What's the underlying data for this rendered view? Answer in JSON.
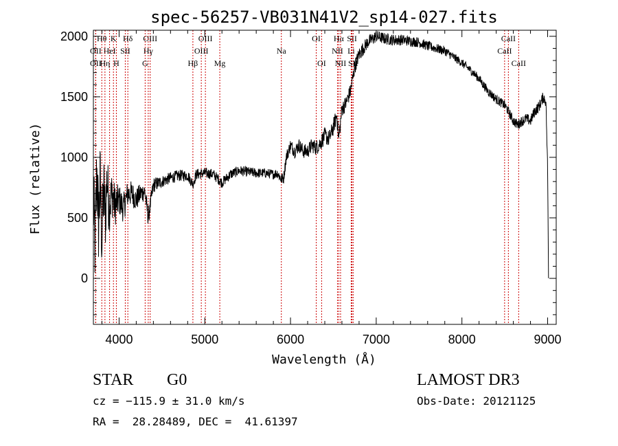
{
  "chart_data": {
    "type": "line",
    "title": "spec-56257-VB031N41V2_sp14-027.fits",
    "xlabel": "Wavelength (Å)",
    "ylabel": "Flux (relative)",
    "xlim": [
      3700,
      9100
    ],
    "ylim": [
      -380,
      2050
    ],
    "xticks": [
      {
        "v": 4000,
        "label": "4000"
      },
      {
        "v": 5000,
        "label": "5000"
      },
      {
        "v": 6000,
        "label": "6000"
      },
      {
        "v": 7000,
        "label": "7000"
      },
      {
        "v": 8000,
        "label": "8000"
      },
      {
        "v": 9000,
        "label": "9000"
      }
    ],
    "yticks": [
      {
        "v": 0,
        "label": "0"
      },
      {
        "v": 500,
        "label": "500"
      },
      {
        "v": 1000,
        "label": "1000"
      },
      {
        "v": 1500,
        "label": "1500"
      },
      {
        "v": 2000,
        "label": "2000"
      }
    ],
    "spectrum_anchors": [
      [
        3700,
        650
      ],
      [
        3720,
        250
      ],
      [
        3740,
        900
      ],
      [
        3760,
        450
      ],
      [
        3780,
        800
      ],
      [
        3800,
        300
      ],
      [
        3820,
        750
      ],
      [
        3840,
        500
      ],
      [
        3860,
        850
      ],
      [
        3880,
        600
      ],
      [
        3900,
        650
      ],
      [
        3920,
        700
      ],
      [
        3950,
        600
      ],
      [
        4000,
        650
      ],
      [
        4050,
        580
      ],
      [
        4100,
        700
      ],
      [
        4150,
        700
      ],
      [
        4200,
        650
      ],
      [
        4250,
        700
      ],
      [
        4300,
        720
      ],
      [
        4340,
        500
      ],
      [
        4400,
        770
      ],
      [
        4500,
        800
      ],
      [
        4600,
        830
      ],
      [
        4700,
        850
      ],
      [
        4800,
        850
      ],
      [
        4861,
        780
      ],
      [
        4900,
        860
      ],
      [
        5000,
        870
      ],
      [
        5100,
        860
      ],
      [
        5200,
        790
      ],
      [
        5300,
        860
      ],
      [
        5400,
        890
      ],
      [
        5500,
        880
      ],
      [
        5600,
        870
      ],
      [
        5700,
        870
      ],
      [
        5800,
        860
      ],
      [
        5850,
        870
      ],
      [
        5890,
        820
      ],
      [
        5920,
        830
      ],
      [
        5950,
        1000
      ],
      [
        6000,
        1100
      ],
      [
        6050,
        1050
      ],
      [
        6100,
        1100
      ],
      [
        6150,
        1050
      ],
      [
        6200,
        1050
      ],
      [
        6250,
        1100
      ],
      [
        6300,
        1080
      ],
      [
        6350,
        1120
      ],
      [
        6400,
        1180
      ],
      [
        6450,
        1150
      ],
      [
        6500,
        1250
      ],
      [
        6540,
        1350
      ],
      [
        6563,
        1150
      ],
      [
        6600,
        1400
      ],
      [
        6650,
        1450
      ],
      [
        6700,
        1550
      ],
      [
        6750,
        1750
      ],
      [
        6800,
        1850
      ],
      [
        6850,
        1900
      ],
      [
        6900,
        1950
      ],
      [
        7000,
        2000
      ],
      [
        7100,
        1980
      ],
      [
        7200,
        1970
      ],
      [
        7300,
        1970
      ],
      [
        7400,
        1960
      ],
      [
        7500,
        1950
      ],
      [
        7600,
        1920
      ],
      [
        7700,
        1900
      ],
      [
        7800,
        1880
      ],
      [
        7900,
        1830
      ],
      [
        8000,
        1780
      ],
      [
        8100,
        1720
      ],
      [
        8200,
        1650
      ],
      [
        8300,
        1550
      ],
      [
        8400,
        1480
      ],
      [
        8500,
        1430
      ],
      [
        8550,
        1370
      ],
      [
        8600,
        1300
      ],
      [
        8650,
        1270
      ],
      [
        8700,
        1300
      ],
      [
        8750,
        1320
      ],
      [
        8800,
        1300
      ],
      [
        8850,
        1380
      ],
      [
        8900,
        1420
      ],
      [
        8950,
        1500
      ],
      [
        8980,
        1460
      ],
      [
        9000,
        900
      ],
      [
        9005,
        500
      ],
      [
        9010,
        20
      ]
    ],
    "noise_amplitude": [
      [
        3700,
        380
      ],
      [
        3800,
        330
      ],
      [
        3900,
        220
      ],
      [
        4000,
        130
      ],
      [
        4300,
        80
      ],
      [
        4500,
        50
      ],
      [
        5000,
        45
      ],
      [
        5800,
        40
      ],
      [
        6000,
        55
      ],
      [
        6500,
        70
      ],
      [
        6800,
        60
      ],
      [
        7000,
        50
      ],
      [
        8000,
        35
      ],
      [
        8500,
        40
      ],
      [
        9000,
        50
      ]
    ],
    "series": [
      {
        "name": "flux",
        "color": "#000000"
      }
    ],
    "line_color": "#cc0000",
    "spectral_lines": [
      {
        "label": "Hθ",
        "x": 3798,
        "row": 0
      },
      {
        "label": "OII",
        "x": 3727,
        "row": 1
      },
      {
        "label": "OII",
        "x": 3727,
        "row": 2
      },
      {
        "label": "K",
        "x": 3934,
        "row": 0
      },
      {
        "label": "HeI",
        "x": 3889,
        "row": 1
      },
      {
        "label": "Hη",
        "x": 3835,
        "row": 2
      },
      {
        "label": "Hδ",
        "x": 4102,
        "row": 0
      },
      {
        "label": "SII",
        "x": 4072,
        "row": 1
      },
      {
        "label": "H",
        "x": 3968,
        "row": 2
      },
      {
        "label": "OIII",
        "x": 4363,
        "row": 0
      },
      {
        "label": "Hγ",
        "x": 4340,
        "row": 1
      },
      {
        "label": "G",
        "x": 4304,
        "row": 2
      },
      {
        "label": "OIII",
        "x": 5007,
        "row": 0
      },
      {
        "label": "OIII",
        "x": 4959,
        "row": 1
      },
      {
        "label": "Hβ",
        "x": 4861,
        "row": 2
      },
      {
        "label": "Mg",
        "x": 5175,
        "row": 2
      },
      {
        "label": "Na",
        "x": 5893,
        "row": 1
      },
      {
        "label": "OI",
        "x": 6300,
        "row": 0
      },
      {
        "label": "OI",
        "x": 6363,
        "row": 2
      },
      {
        "label": "Hα",
        "x": 6563,
        "row": 0
      },
      {
        "label": "SII",
        "x": 6717,
        "row": 0
      },
      {
        "label": "NII",
        "x": 6548,
        "row": 1
      },
      {
        "label": "Li",
        "x": 6708,
        "row": 1
      },
      {
        "label": "NII",
        "x": 6584,
        "row": 2
      },
      {
        "label": "SII",
        "x": 6731,
        "row": 2
      },
      {
        "label": "CaII",
        "x": 8542,
        "row": 0
      },
      {
        "label": "CaII",
        "x": 8498,
        "row": 1
      },
      {
        "label": "CaII",
        "x": 8662,
        "row": 2
      }
    ]
  },
  "info": {
    "class_label": "STAR",
    "subclass_label": "G0",
    "survey": "LAMOST DR3",
    "cz": "cz = −115.9 ± 31.0 km/s",
    "obs_date": "Obs-Date: 20121125",
    "coords": "RA =  28.28489, DEC =  41.61397"
  }
}
